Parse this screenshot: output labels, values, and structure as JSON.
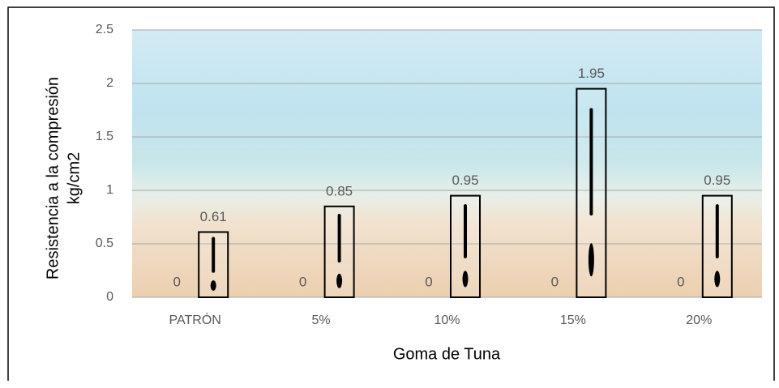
{
  "chart_data": {
    "type": "bar",
    "categories": [
      "PATRÓN",
      "5%",
      "10%",
      "15%",
      "20%"
    ],
    "series": [
      {
        "color": "none",
        "values": [
          0,
          0,
          0,
          0,
          0
        ]
      },
      {
        "color": "#000000",
        "values": [
          0.61,
          0.85,
          0.95,
          1.95,
          0.95
        ]
      }
    ],
    "xlabel": "Goma de Tuna",
    "ylabel": [
      "Resistencia a la compresión",
      "kg/cm2"
    ],
    "ylim": [
      0,
      2.5
    ],
    "yticks": [
      0,
      0.5,
      1,
      1.5,
      2,
      2.5
    ],
    "grid": true
  }
}
